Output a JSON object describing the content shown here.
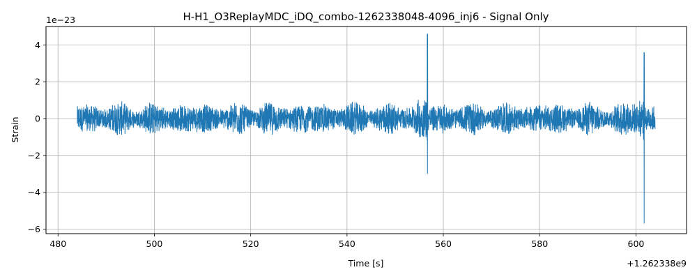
{
  "chart_data": {
    "type": "line",
    "title": "H-H1_O3ReplayMDC_iDQ_combo-1262338048-4096_inj6 - Signal Only",
    "xlabel": "Time [s]",
    "ylabel": "Strain",
    "x_offset_label": "+1.262338e9",
    "y_scale_label": "1e−23",
    "xlim": [
      477.5,
      610.5
    ],
    "ylim": [
      -6.25,
      5.0
    ],
    "x_ticks": [
      480,
      500,
      520,
      540,
      560,
      580,
      600
    ],
    "x_tick_labels": [
      "480",
      "500",
      "520",
      "540",
      "560",
      "580",
      "600"
    ],
    "y_ticks": [
      -6,
      -4,
      -2,
      0,
      2,
      4
    ],
    "y_tick_labels": [
      "−6",
      "−4",
      "−2",
      "0",
      "2",
      "4"
    ],
    "grid": true,
    "series": [
      {
        "color": "#1f77b4",
        "x_range": [
          484,
          604
        ],
        "baseline_amplitude": 1.0,
        "features": [
          {
            "x": 556.7,
            "max": 4.6,
            "min": -3.0
          },
          {
            "x": 601.7,
            "max": 3.6,
            "min": -5.7
          }
        ]
      }
    ]
  }
}
